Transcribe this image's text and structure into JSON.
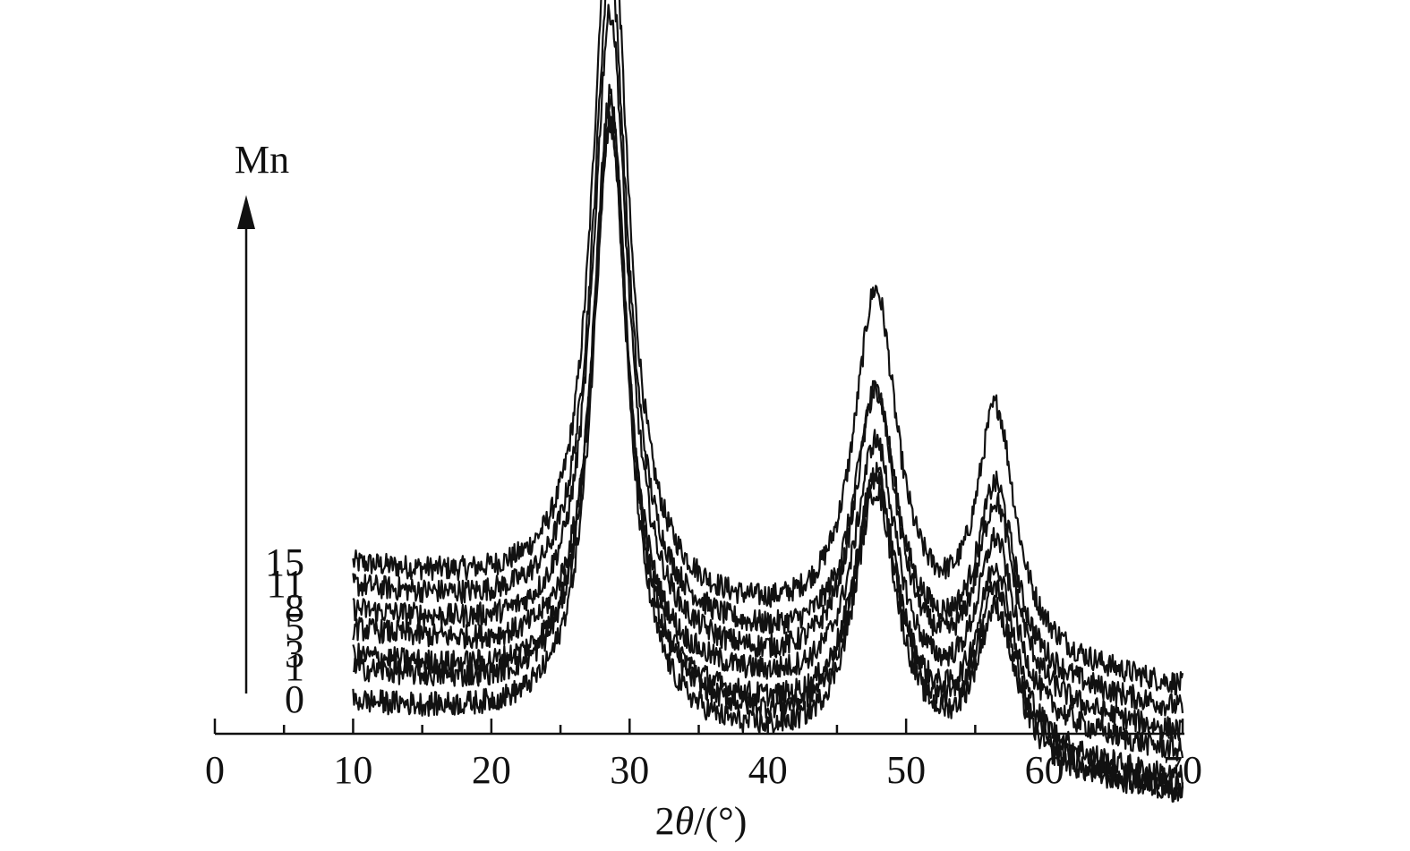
{
  "chart_data": {
    "type": "line",
    "title": "",
    "xlabel_prefix": "2",
    "xlabel_theta": "θ",
    "xlabel_suffix": "/(°)",
    "ylabel": "",
    "xlim": [
      0,
      70
    ],
    "x_ticks_major": [
      0,
      10,
      20,
      30,
      40,
      50,
      60,
      70
    ],
    "x_tick_labels": [
      "0",
      "10",
      "20",
      "30",
      "40",
      "50",
      "60",
      "70"
    ],
    "x_ticks_minor": [
      5,
      15,
      25,
      35,
      45,
      55,
      65
    ],
    "y_axis_visible": false,
    "grid": false,
    "stacked_offset": true,
    "trend_arrow_label": "Mn",
    "peak_positions_2theta": [
      28.6,
      47.8,
      56.5
    ],
    "x_range_measured": [
      10,
      70
    ],
    "series": [
      {
        "name": "15",
        "baseline_at_10": 0.55,
        "baseline_at_70": 0.09,
        "peak_heights": [
          2.67,
          1.28,
          0.9
        ]
      },
      {
        "name": "11",
        "baseline_at_10": 0.47,
        "baseline_at_70": 0.01,
        "peak_heights": [
          2.44,
          1.0,
          0.7
        ]
      },
      {
        "name": "8",
        "baseline_at_10": 0.38,
        "baseline_at_70": -0.08,
        "peak_heights": [
          2.37,
          1.08,
          0.72
        ]
      },
      {
        "name": "5",
        "baseline_at_10": 0.31,
        "baseline_at_70": -0.15,
        "peak_heights": [
          2.0,
          0.97,
          0.66
        ]
      },
      {
        "name": "3",
        "baseline_at_10": 0.21,
        "baseline_at_70": -0.25,
        "peak_heights": [
          2.22,
          0.95,
          0.66
        ]
      },
      {
        "name": "1",
        "baseline_at_10": 0.16,
        "baseline_at_70": -0.29,
        "peak_heights": [
          2.28,
          0.98,
          0.62
        ]
      },
      {
        "name": "0",
        "baseline_at_10": 0.04,
        "baseline_at_70": -0.3,
        "peak_heights": [
          2.28,
          0.98,
          0.58
        ]
      }
    ]
  }
}
